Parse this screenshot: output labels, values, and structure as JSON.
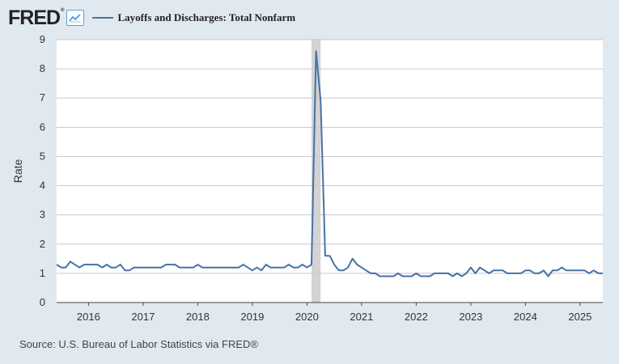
{
  "header": {
    "logo_text": "FRED",
    "logo_mark": "®",
    "icon": "line-graph-icon",
    "series_title": "Layoffs and Discharges: Total Nonfarm"
  },
  "source": "Source: U.S. Bureau of Labor Statistics via FRED®",
  "colors": {
    "line": "#4572a7",
    "background": "#e1e9f0",
    "plot": "#ffffff",
    "grid": "#c8c8c8",
    "recession": "#d3d3d3"
  },
  "chart_data": {
    "type": "line",
    "title": "Layoffs and Discharges: Total Nonfarm",
    "xlabel": "",
    "ylabel": "Rate",
    "ylim": [
      0,
      9
    ],
    "yticks": [
      0,
      1,
      2,
      3,
      4,
      5,
      6,
      7,
      8,
      9
    ],
    "xlim": [
      "2015-06",
      "2025-06"
    ],
    "xticks": [
      "2016",
      "2017",
      "2018",
      "2019",
      "2020",
      "2021",
      "2022",
      "2023",
      "2024",
      "2025"
    ],
    "grid": true,
    "recession": {
      "start": "2020-02",
      "end": "2020-04"
    },
    "series": [
      {
        "x": [
          "2015-06",
          "2015-07",
          "2015-08",
          "2015-09",
          "2015-10",
          "2015-11",
          "2015-12",
          "2016-01",
          "2016-02",
          "2016-03",
          "2016-04",
          "2016-05",
          "2016-06",
          "2016-07",
          "2016-08",
          "2016-09",
          "2016-10",
          "2016-11",
          "2016-12",
          "2017-01",
          "2017-02",
          "2017-03",
          "2017-04",
          "2017-05",
          "2017-06",
          "2017-07",
          "2017-08",
          "2017-09",
          "2017-10",
          "2017-11",
          "2017-12",
          "2018-01",
          "2018-02",
          "2018-03",
          "2018-04",
          "2018-05",
          "2018-06",
          "2018-07",
          "2018-08",
          "2018-09",
          "2018-10",
          "2018-11",
          "2018-12",
          "2019-01",
          "2019-02",
          "2019-03",
          "2019-04",
          "2019-05",
          "2019-06",
          "2019-07",
          "2019-08",
          "2019-09",
          "2019-10",
          "2019-11",
          "2019-12",
          "2020-01",
          "2020-02",
          "2020-03",
          "2020-04",
          "2020-05",
          "2020-06",
          "2020-07",
          "2020-08",
          "2020-09",
          "2020-10",
          "2020-11",
          "2020-12",
          "2021-01",
          "2021-02",
          "2021-03",
          "2021-04",
          "2021-05",
          "2021-06",
          "2021-07",
          "2021-08",
          "2021-09",
          "2021-10",
          "2021-11",
          "2021-12",
          "2022-01",
          "2022-02",
          "2022-03",
          "2022-04",
          "2022-05",
          "2022-06",
          "2022-07",
          "2022-08",
          "2022-09",
          "2022-10",
          "2022-11",
          "2022-12",
          "2023-01",
          "2023-02",
          "2023-03",
          "2023-04",
          "2023-05",
          "2023-06",
          "2023-07",
          "2023-08",
          "2023-09",
          "2023-10",
          "2023-11",
          "2023-12",
          "2024-01",
          "2024-02",
          "2024-03",
          "2024-04",
          "2024-05",
          "2024-06",
          "2024-07",
          "2024-08",
          "2024-09",
          "2024-10",
          "2024-11",
          "2024-12",
          "2025-01",
          "2025-02",
          "2025-03",
          "2025-04",
          "2025-05",
          "2025-06"
        ],
        "values": [
          1.3,
          1.2,
          1.2,
          1.4,
          1.3,
          1.2,
          1.3,
          1.3,
          1.3,
          1.3,
          1.2,
          1.3,
          1.2,
          1.2,
          1.3,
          1.1,
          1.1,
          1.2,
          1.2,
          1.2,
          1.2,
          1.2,
          1.2,
          1.2,
          1.3,
          1.3,
          1.3,
          1.2,
          1.2,
          1.2,
          1.2,
          1.3,
          1.2,
          1.2,
          1.2,
          1.2,
          1.2,
          1.2,
          1.2,
          1.2,
          1.2,
          1.3,
          1.2,
          1.1,
          1.2,
          1.1,
          1.3,
          1.2,
          1.2,
          1.2,
          1.2,
          1.3,
          1.2,
          1.2,
          1.3,
          1.2,
          1.3,
          8.6,
          6.9,
          1.6,
          1.6,
          1.3,
          1.1,
          1.1,
          1.2,
          1.5,
          1.3,
          1.2,
          1.1,
          1.0,
          1.0,
          0.9,
          0.9,
          0.9,
          0.9,
          1.0,
          0.9,
          0.9,
          0.9,
          1.0,
          0.9,
          0.9,
          0.9,
          1.0,
          1.0,
          1.0,
          1.0,
          0.9,
          1.0,
          0.9,
          1.0,
          1.2,
          1.0,
          1.2,
          1.1,
          1.0,
          1.1,
          1.1,
          1.1,
          1.0,
          1.0,
          1.0,
          1.0,
          1.1,
          1.1,
          1.0,
          1.0,
          1.1,
          0.9,
          1.1,
          1.1,
          1.2,
          1.1,
          1.1,
          1.1,
          1.1,
          1.1,
          1.0,
          1.1,
          1.0,
          1.0
        ]
      }
    ]
  }
}
